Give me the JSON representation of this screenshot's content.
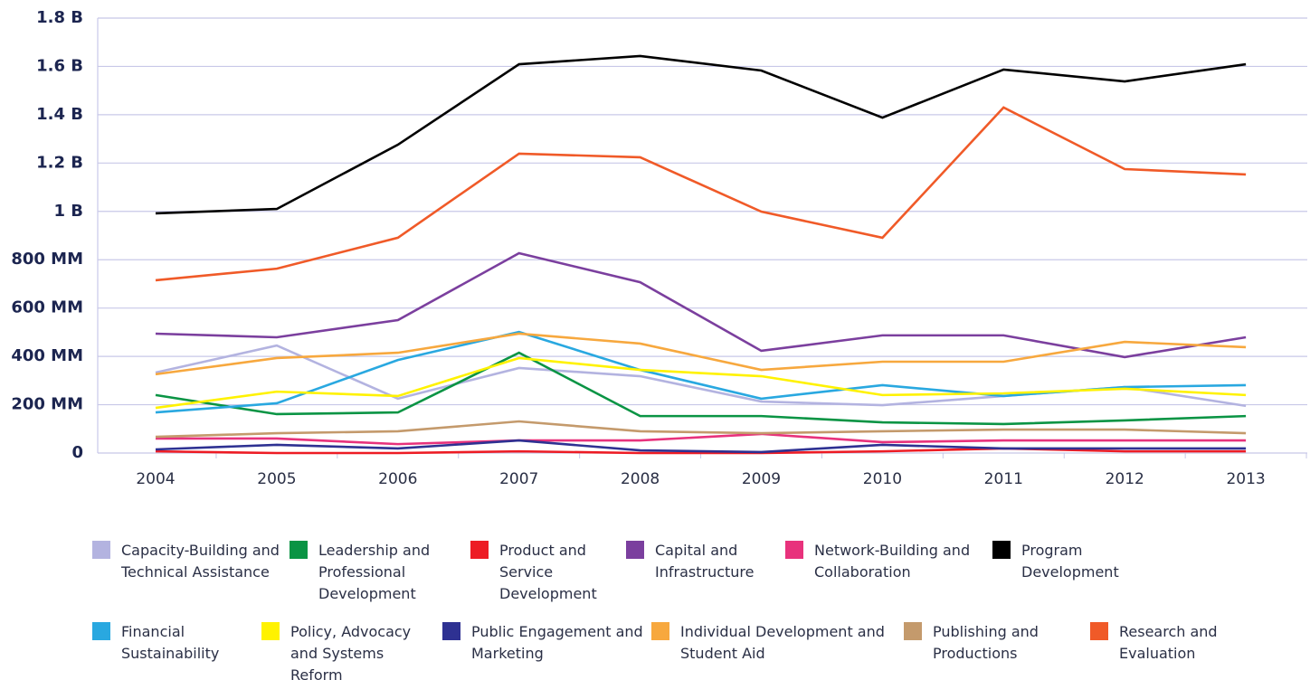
{
  "chart_data": {
    "type": "line",
    "categories": [
      "2004",
      "2005",
      "2006",
      "2007",
      "2008",
      "2009",
      "2010",
      "2011",
      "2012",
      "2013"
    ],
    "ylim": [
      0,
      1800000000
    ],
    "yticks": [
      {
        "value": 0,
        "label": "0"
      },
      {
        "value": 200000000,
        "label": "200 MM"
      },
      {
        "value": 400000000,
        "label": "400 MM"
      },
      {
        "value": 600000000,
        "label": "600 MM"
      },
      {
        "value": 800000000,
        "label": "800 MM"
      },
      {
        "value": 1000000000,
        "label": "1 B"
      },
      {
        "value": 1200000000,
        "label": "1.2 B"
      },
      {
        "value": 1400000000,
        "label": "1.4 B"
      },
      {
        "value": 1600000000,
        "label": "1.6 B"
      },
      {
        "value": 1800000000,
        "label": "1.8 B"
      }
    ],
    "grid": true,
    "series": [
      {
        "name": "Capacity-Building and Technical Assistance",
        "color": "#b3b3e0",
        "values": [
          333000000,
          445000000,
          225000000,
          352000000,
          318000000,
          213000000,
          198000000,
          236000000,
          273000000,
          195000000
        ]
      },
      {
        "name": "Leadership and Professional Development",
        "color": "#0a9444",
        "values": [
          240000000,
          161000000,
          168000000,
          415000000,
          153000000,
          153000000,
          127000000,
          120000000,
          135000000,
          153000000
        ]
      },
      {
        "name": "Product and Service Development",
        "color": "#ed1c24",
        "values": [
          7000000,
          0,
          0,
          7000000,
          0,
          0,
          7000000,
          19000000,
          7000000,
          7000000
        ]
      },
      {
        "name": "Capital and Infrastructure",
        "color": "#7b3f9e",
        "values": [
          494000000,
          479000000,
          550000000,
          827000000,
          707000000,
          423000000,
          487000000,
          487000000,
          397000000,
          479000000
        ]
      },
      {
        "name": "Network-Building and Collaboration",
        "color": "#e8327c",
        "values": [
          60000000,
          60000000,
          37000000,
          52000000,
          52000000,
          79000000,
          45000000,
          52000000,
          52000000,
          52000000
        ]
      },
      {
        "name": "Program Development",
        "color": "#000000",
        "values": [
          992000000,
          1010000000,
          1276000000,
          1609000000,
          1643000000,
          1583000000,
          1388000000,
          1587000000,
          1538000000,
          1609000000
        ]
      },
      {
        "name": "Financial Sustainability",
        "color": "#29a8e0",
        "values": [
          168000000,
          206000000,
          385000000,
          501000000,
          344000000,
          225000000,
          281000000,
          236000000,
          273000000,
          281000000
        ]
      },
      {
        "name": "Policy, Advocacy and Systems Reform",
        "color": "#fff200",
        "values": [
          187000000,
          254000000,
          236000000,
          393000000,
          344000000,
          318000000,
          240000000,
          247000000,
          266000000,
          240000000
        ]
      },
      {
        "name": "Public Engagement and Marketing",
        "color": "#2e3192",
        "values": [
          15000000,
          34000000,
          19000000,
          52000000,
          11000000,
          4000000,
          34000000,
          19000000,
          19000000,
          19000000
        ]
      },
      {
        "name": "Individual Development and Student Aid",
        "color": "#f7a83e",
        "values": [
          326000000,
          393000000,
          415000000,
          494000000,
          453000000,
          344000000,
          378000000,
          378000000,
          460000000,
          438000000
        ]
      },
      {
        "name": "Publishing and Productions",
        "color": "#c49a6c",
        "values": [
          67000000,
          82000000,
          90000000,
          131000000,
          90000000,
          82000000,
          90000000,
          97000000,
          97000000,
          82000000
        ]
      },
      {
        "name": "Research and Evaluation",
        "color": "#f05a28",
        "values": [
          715000000,
          763000000,
          891000000,
          1239000000,
          1224000000,
          999000000,
          891000000,
          1430000000,
          1175000000,
          1153000000
        ]
      }
    ]
  }
}
